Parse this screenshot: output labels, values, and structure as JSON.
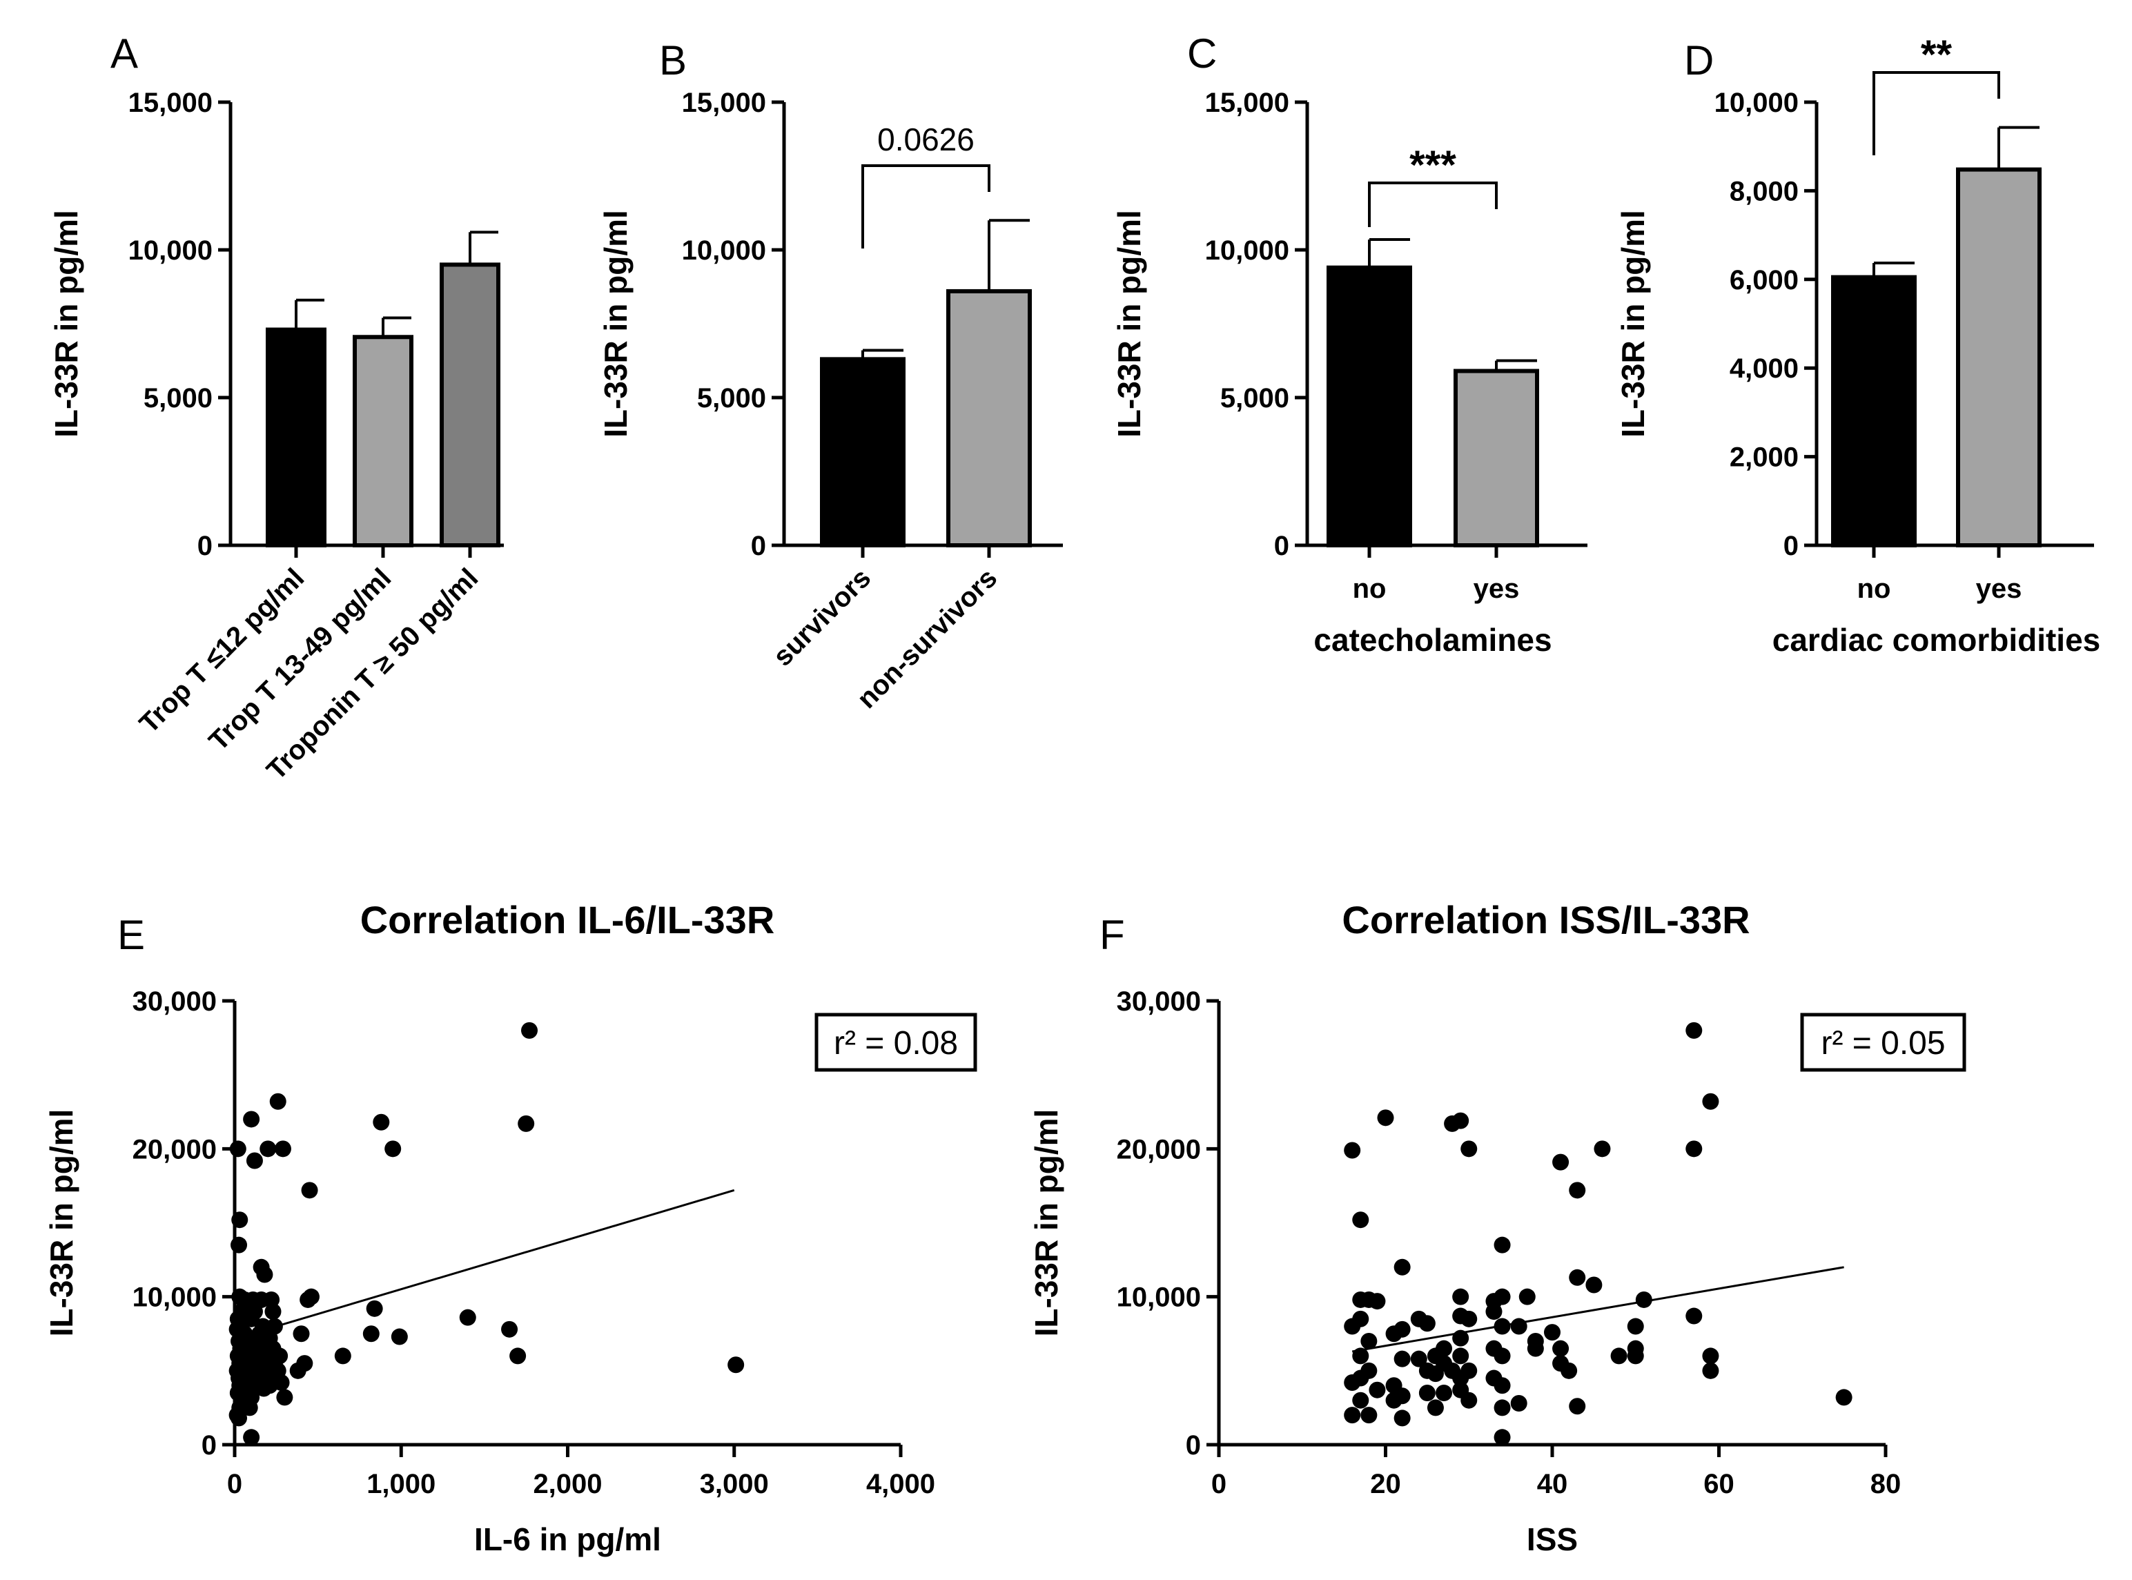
{
  "chart_data": [
    {
      "panel": "A",
      "type": "bar",
      "categories": [
        "Trop T ≤12 pg/ml",
        "Trop T 13-49 pg/ml",
        "Troponin T ≥ 50 pg/ml"
      ],
      "values": [
        7300,
        7050,
        9500
      ],
      "errors": [
        1000,
        650,
        1100
      ],
      "colors": [
        "#000000",
        "#a3a3a3",
        "#7f7f7f"
      ],
      "ylabel": "IL-33R in pg/ml",
      "xlabel": "",
      "ylim": [
        0,
        15000
      ],
      "yticks": [
        0,
        5000,
        10000,
        15000
      ],
      "ytick_labels": [
        "0",
        "5,000",
        "10,000",
        "15,000"
      ],
      "significance": null
    },
    {
      "panel": "B",
      "type": "bar",
      "categories": [
        "survivors",
        "non-survivors"
      ],
      "values": [
        6300,
        8600
      ],
      "errors": [
        300,
        2400
      ],
      "colors": [
        "#000000",
        "#a3a3a3"
      ],
      "ylabel": "IL-33R in pg/ml",
      "xlabel": "",
      "ylim": [
        0,
        15000
      ],
      "yticks": [
        0,
        5000,
        10000,
        15000
      ],
      "ytick_labels": [
        "0",
        "5,000",
        "10,000",
        "15,000"
      ],
      "significance": "0.0626"
    },
    {
      "panel": "C",
      "type": "bar",
      "categories": [
        "no",
        "yes"
      ],
      "values": [
        9400,
        5900
      ],
      "errors": [
        950,
        350
      ],
      "colors": [
        "#000000",
        "#a3a3a3"
      ],
      "ylabel": "IL-33R in pg/ml",
      "xlabel": "catecholamines",
      "ylim": [
        0,
        15000
      ],
      "yticks": [
        0,
        5000,
        10000,
        15000
      ],
      "ytick_labels": [
        "0",
        "5,000",
        "10,000",
        "15,000"
      ],
      "significance": "***"
    },
    {
      "panel": "D",
      "type": "bar",
      "categories": [
        "no",
        "yes"
      ],
      "values": [
        6050,
        8480
      ],
      "errors": [
        320,
        950
      ],
      "colors": [
        "#000000",
        "#a3a3a3"
      ],
      "ylabel": "IL-33R in pg/ml",
      "xlabel": "cardiac comorbidities",
      "ylim": [
        0,
        10000
      ],
      "yticks": [
        0,
        2000,
        4000,
        6000,
        8000,
        10000
      ],
      "ytick_labels": [
        "0",
        "2,000",
        "4,000",
        "6,000",
        "8,000",
        "10,000"
      ],
      "significance": "**"
    },
    {
      "panel": "E",
      "type": "scatter",
      "title": "Correlation IL-6/IL-33R",
      "xlabel": "IL-6 in pg/ml",
      "ylabel": "IL-33R in pg/ml",
      "xlim": [
        0,
        4000
      ],
      "ylim": [
        0,
        30000
      ],
      "xticks": [
        0,
        1000,
        2000,
        3000,
        4000
      ],
      "xtick_labels": [
        "0",
        "1,000",
        "2,000",
        "3,000",
        "4,000"
      ],
      "yticks": [
        0,
        10000,
        20000,
        30000
      ],
      "ytick_labels": [
        "0",
        "10,000",
        "20,000",
        "30,000"
      ],
      "annotation": "r² = 0.08",
      "fit_line": {
        "x": [
          100,
          3000
        ],
        "y": [
          7500,
          17200
        ]
      },
      "points": [
        [
          20,
          20000
        ],
        [
          30,
          15200
        ],
        [
          25,
          13500
        ],
        [
          30,
          10000
        ],
        [
          40,
          9000
        ],
        [
          20,
          8500
        ],
        [
          30,
          8000
        ],
        [
          15,
          7800
        ],
        [
          25,
          7000
        ],
        [
          35,
          6500
        ],
        [
          20,
          6000
        ],
        [
          30,
          5500
        ],
        [
          15,
          5000
        ],
        [
          25,
          4500
        ],
        [
          30,
          4000
        ],
        [
          20,
          3500
        ],
        [
          40,
          3000
        ],
        [
          30,
          2500
        ],
        [
          15,
          2000
        ],
        [
          25,
          1800
        ],
        [
          60,
          9800
        ],
        [
          70,
          9000
        ],
        [
          80,
          8500
        ],
        [
          60,
          7500
        ],
        [
          75,
          7000
        ],
        [
          65,
          6500
        ],
        [
          55,
          6000
        ],
        [
          80,
          5500
        ],
        [
          70,
          5000
        ],
        [
          60,
          4500
        ],
        [
          85,
          4000
        ],
        [
          70,
          3500
        ],
        [
          60,
          3000
        ],
        [
          90,
          2500
        ],
        [
          100,
          500
        ],
        [
          100,
          22000
        ],
        [
          120,
          19200
        ],
        [
          110,
          9800
        ],
        [
          120,
          9000
        ],
        [
          100,
          8500
        ],
        [
          110,
          7000
        ],
        [
          130,
          6500
        ],
        [
          100,
          6000
        ],
        [
          140,
          5500
        ],
        [
          120,
          5000
        ],
        [
          105,
          4500
        ],
        [
          130,
          4200
        ],
        [
          115,
          3800
        ],
        [
          100,
          3200
        ],
        [
          160,
          12000
        ],
        [
          180,
          11500
        ],
        [
          160,
          9800
        ],
        [
          170,
          8000
        ],
        [
          150,
          7500
        ],
        [
          190,
          7000
        ],
        [
          165,
          6500
        ],
        [
          180,
          6000
        ],
        [
          155,
          5500
        ],
        [
          170,
          5000
        ],
        [
          185,
          4800
        ],
        [
          160,
          4200
        ],
        [
          175,
          3800
        ],
        [
          200,
          20000
        ],
        [
          220,
          9800
        ],
        [
          230,
          9000
        ],
        [
          240,
          8000
        ],
        [
          210,
          7200
        ],
        [
          230,
          6500
        ],
        [
          220,
          6000
        ],
        [
          240,
          5500
        ],
        [
          215,
          5000
        ],
        [
          235,
          4500
        ],
        [
          210,
          4000
        ],
        [
          260,
          23200
        ],
        [
          290,
          20000
        ],
        [
          270,
          6000
        ],
        [
          260,
          5000
        ],
        [
          280,
          4200
        ],
        [
          300,
          3200
        ],
        [
          380,
          5000
        ],
        [
          400,
          7500
        ],
        [
          420,
          5500
        ],
        [
          440,
          9800
        ],
        [
          460,
          10000
        ],
        [
          450,
          17200
        ],
        [
          650,
          6000
        ],
        [
          820,
          7500
        ],
        [
          840,
          9200
        ],
        [
          880,
          21800
        ],
        [
          950,
          20000
        ],
        [
          990,
          7300
        ],
        [
          1400,
          8600
        ],
        [
          1650,
          7800
        ],
        [
          1700,
          6000
        ],
        [
          1750,
          21700
        ],
        [
          1770,
          28000
        ],
        [
          3010,
          5400
        ]
      ]
    },
    {
      "panel": "F",
      "type": "scatter",
      "title": "Correlation ISS/IL-33R",
      "xlabel": "ISS",
      "ylabel": "IL-33R in pg/ml",
      "xlim": [
        0,
        80
      ],
      "ylim": [
        0,
        30000
      ],
      "xticks": [
        0,
        20,
        40,
        60,
        80
      ],
      "xtick_labels": [
        "0",
        "20",
        "40",
        "60",
        "80"
      ],
      "yticks": [
        0,
        10000,
        20000,
        30000
      ],
      "ytick_labels": [
        "0",
        "10,000",
        "20,000",
        "30,000"
      ],
      "annotation": "r² = 0.05",
      "fit_line": {
        "x": [
          16,
          75
        ],
        "y": [
          6300,
          12000
        ]
      },
      "points": [
        [
          16,
          19900
        ],
        [
          17,
          15200
        ],
        [
          16,
          8000
        ],
        [
          16,
          4200
        ],
        [
          16,
          2000
        ],
        [
          17,
          9800
        ],
        [
          17,
          8500
        ],
        [
          17,
          6000
        ],
        [
          17,
          4500
        ],
        [
          17,
          3000
        ],
        [
          18,
          9800
        ],
        [
          18,
          7000
        ],
        [
          18,
          5000
        ],
        [
          18,
          2000
        ],
        [
          19,
          9700
        ],
        [
          19,
          3700
        ],
        [
          20,
          22100
        ],
        [
          21,
          7500
        ],
        [
          21,
          4000
        ],
        [
          21,
          3000
        ],
        [
          22,
          12000
        ],
        [
          22,
          7800
        ],
        [
          22,
          5800
        ],
        [
          22,
          3300
        ],
        [
          22,
          1800
        ],
        [
          24,
          8500
        ],
        [
          24,
          5800
        ],
        [
          25,
          8200
        ],
        [
          25,
          5000
        ],
        [
          25,
          3500
        ],
        [
          26,
          6000
        ],
        [
          26,
          4800
        ],
        [
          26,
          2500
        ],
        [
          27,
          6500
        ],
        [
          27,
          5500
        ],
        [
          27,
          3500
        ],
        [
          28,
          21700
        ],
        [
          28,
          5000
        ],
        [
          29,
          21900
        ],
        [
          29,
          10000
        ],
        [
          29,
          8700
        ],
        [
          29,
          7200
        ],
        [
          29,
          6000
        ],
        [
          29,
          4500
        ],
        [
          29,
          3700
        ],
        [
          30,
          20000
        ],
        [
          30,
          8500
        ],
        [
          30,
          5000
        ],
        [
          30,
          3000
        ],
        [
          33,
          9700
        ],
        [
          33,
          9000
        ],
        [
          33,
          6500
        ],
        [
          33,
          4500
        ],
        [
          34,
          13500
        ],
        [
          34,
          10000
        ],
        [
          34,
          8000
        ],
        [
          34,
          6000
        ],
        [
          34,
          4000
        ],
        [
          34,
          2500
        ],
        [
          34,
          500
        ],
        [
          36,
          8000
        ],
        [
          36,
          2800
        ],
        [
          37,
          10000
        ],
        [
          38,
          7000
        ],
        [
          38,
          6500
        ],
        [
          40,
          7600
        ],
        [
          41,
          19100
        ],
        [
          41,
          6500
        ],
        [
          41,
          5500
        ],
        [
          42,
          5000
        ],
        [
          43,
          17200
        ],
        [
          43,
          11300
        ],
        [
          43,
          2600
        ],
        [
          45,
          10800
        ],
        [
          46,
          20000
        ],
        [
          48,
          6000
        ],
        [
          50,
          8000
        ],
        [
          50,
          6500
        ],
        [
          50,
          6000
        ],
        [
          51,
          9800
        ],
        [
          57,
          28000
        ],
        [
          57,
          20000
        ],
        [
          57,
          8700
        ],
        [
          59,
          23200
        ],
        [
          59,
          6000
        ],
        [
          59,
          5000
        ],
        [
          75,
          3200
        ]
      ]
    }
  ]
}
